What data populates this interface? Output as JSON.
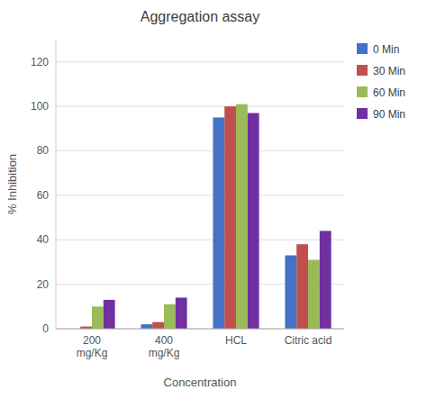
{
  "chart_data": {
    "type": "bar",
    "title": "Aggregation assay",
    "xlabel": "Concentration",
    "ylabel": "% Inhibition",
    "categories": [
      "200\nmg/Kg",
      "400\nmg/Kg",
      "HCL",
      "Citric acid"
    ],
    "series": [
      {
        "name": "0 Min",
        "color": "#4472C4",
        "values": [
          0,
          2,
          95,
          33
        ]
      },
      {
        "name": "30 Min",
        "color": "#C0504D",
        "values": [
          1,
          3,
          100,
          38
        ]
      },
      {
        "name": "60 Min",
        "color": "#9BBB59",
        "values": [
          10,
          11,
          101,
          31
        ]
      },
      {
        "name": "90 Min",
        "color": "#7030A0",
        "values": [
          13,
          14,
          97,
          44
        ]
      }
    ],
    "ylim": [
      0,
      130
    ],
    "yticks": [
      0,
      20,
      40,
      60,
      80,
      100,
      120
    ],
    "grid": true,
    "legend": "right"
  }
}
